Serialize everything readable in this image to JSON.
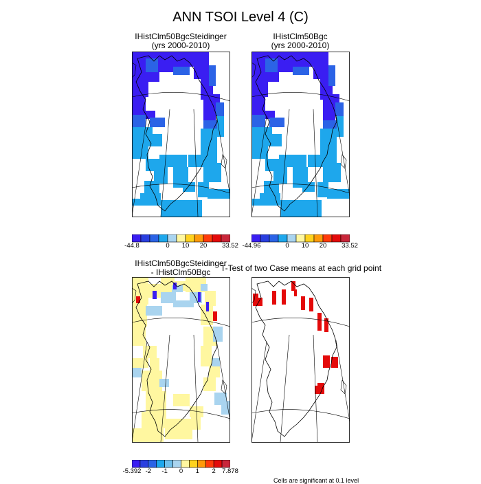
{
  "title": "ANN TSOI Level 4 (C)",
  "panels": {
    "case1": {
      "title1": "IHistClm50BgcSteidinger",
      "title2": "(yrs 2000-2010)"
    },
    "case2": {
      "title1": "IHistClm50Bgc",
      "title2": "(yrs 2000-2010)"
    },
    "diff": {
      "title1": "IHistClm50BgcSteidinger",
      "title2": "- IHistClm50Bgc"
    },
    "ttest": {
      "title1": "T-Test of two Case means at each grid point",
      "note": "Cells are significant at 0.1 level"
    }
  },
  "colorbars": {
    "case1": {
      "colors": [
        "#3a1ef2",
        "#2a3fe0",
        "#2b63e6",
        "#1ea7ec",
        "#a9d4ef",
        "#fff7a0",
        "#ffd21e",
        "#ff9a0a",
        "#ff3b0a",
        "#e40a0a",
        "#c9273a"
      ],
      "labels": [
        {
          "text": "-44.8",
          "pos": 0.0
        },
        {
          "text": "0",
          "pos": 0.3636
        },
        {
          "text": "10",
          "pos": 0.5455
        },
        {
          "text": "20",
          "pos": 0.7273
        },
        {
          "text": "33.52",
          "pos": 1.0
        }
      ]
    },
    "case2": {
      "colors": [
        "#3a1ef2",
        "#2a3fe0",
        "#2b63e6",
        "#1ea7ec",
        "#a9d4ef",
        "#fff7a0",
        "#ffd21e",
        "#ff9a0a",
        "#ff3b0a",
        "#e40a0a",
        "#c9273a"
      ],
      "labels": [
        {
          "text": "-44.96",
          "pos": 0.0
        },
        {
          "text": "0",
          "pos": 0.3636
        },
        {
          "text": "10",
          "pos": 0.5455
        },
        {
          "text": "20",
          "pos": 0.7273
        },
        {
          "text": "33.52",
          "pos": 1.0
        }
      ]
    },
    "diff": {
      "colors": [
        "#3a1ef2",
        "#2a3fe0",
        "#2b63e6",
        "#1ea7ec",
        "#6fc0ec",
        "#a9d4ef",
        "#fff7a0",
        "#ffd21e",
        "#ff9a0a",
        "#ff3b0a",
        "#e40a0a",
        "#c9273a"
      ],
      "labels": [
        {
          "text": "-5.392",
          "pos": 0.0
        },
        {
          "text": "-2",
          "pos": 0.1667
        },
        {
          "text": "-1",
          "pos": 0.3333
        },
        {
          "text": "0",
          "pos": 0.5
        },
        {
          "text": "1",
          "pos": 0.6667
        },
        {
          "text": "2",
          "pos": 0.8333
        },
        {
          "text": "7.878",
          "pos": 1.0
        }
      ]
    }
  },
  "chart_data": [
    {
      "type": "heatmap",
      "title": "IHistClm50BgcSteidinger (yrs 2000-2010)",
      "variable": "TSOI Level 4",
      "units": "C",
      "range": [
        -44.8,
        33.52
      ]
    },
    {
      "type": "heatmap",
      "title": "IHistClm50Bgc (yrs 2000-2010)",
      "variable": "TSOI Level 4",
      "units": "C",
      "range": [
        -44.96,
        33.52
      ]
    },
    {
      "type": "heatmap",
      "title": "IHistClm50BgcSteidinger - IHistClm50Bgc",
      "range": [
        -5.392,
        7.878
      ]
    },
    {
      "type": "heatmap",
      "title": "T-Test of two Case means at each grid point",
      "note": "Cells are significant at 0.1 level"
    }
  ]
}
